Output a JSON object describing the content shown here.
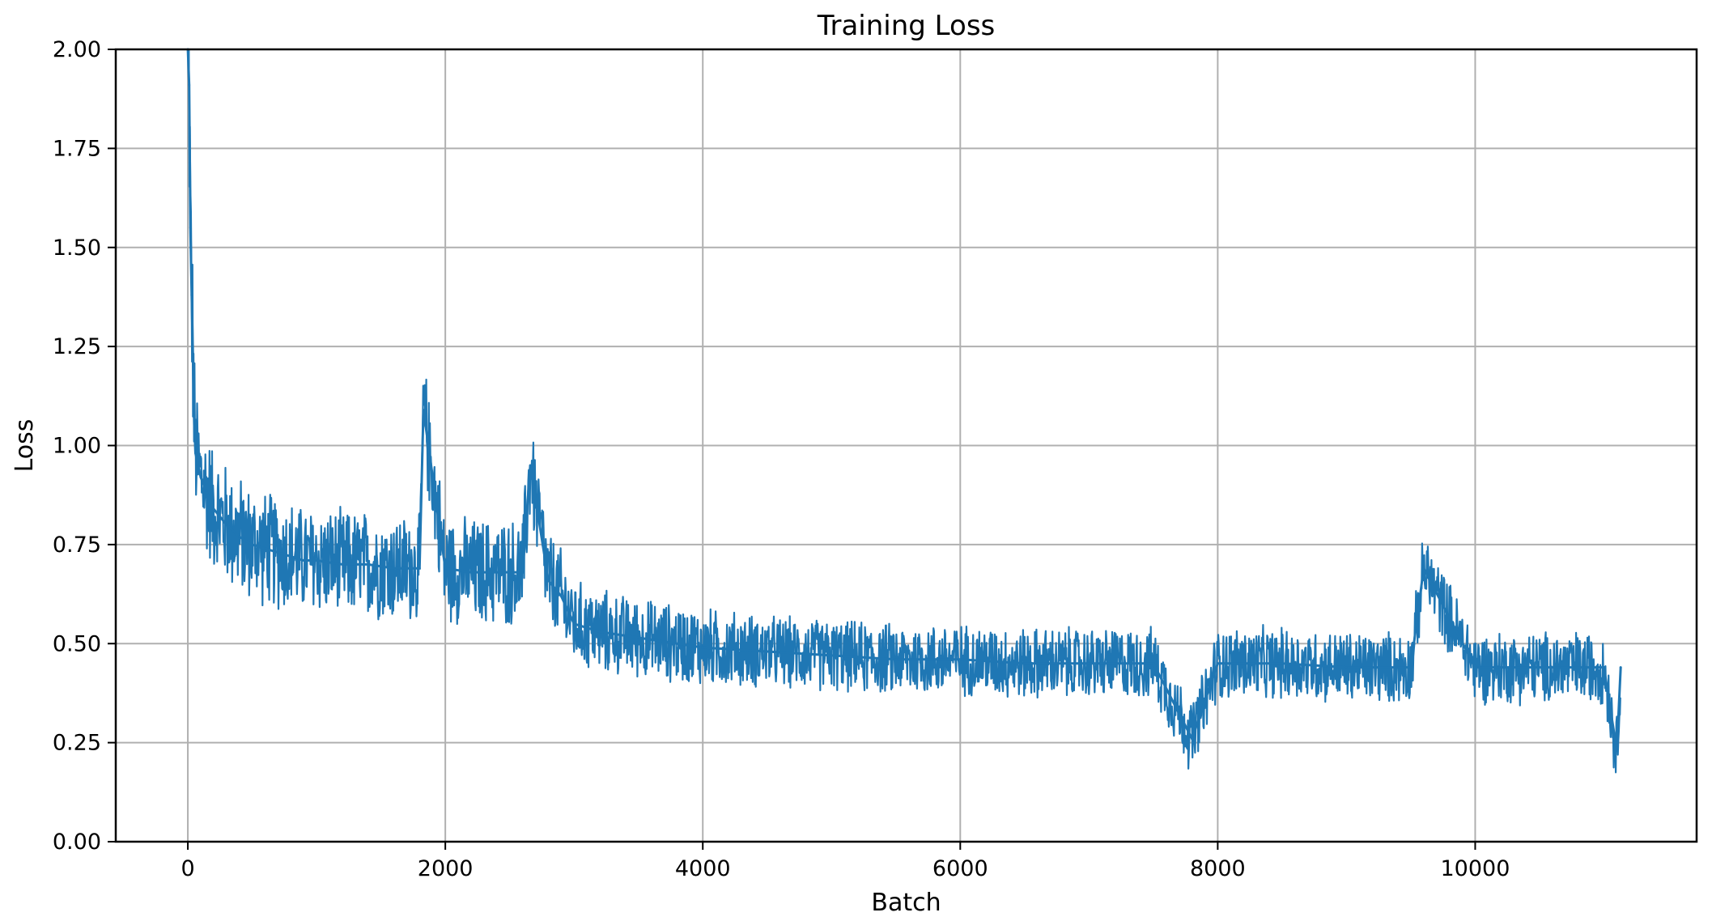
{
  "chart_data": {
    "type": "line",
    "title": "Training Loss",
    "xlabel": "Batch",
    "ylabel": "Loss",
    "xlim": [
      -560,
      11720
    ],
    "ylim": [
      0.0,
      2.0
    ],
    "grid": true,
    "legend": "none",
    "x_ticks": [
      0,
      2000,
      4000,
      6000,
      8000,
      10000
    ],
    "x_tick_labels": [
      "0",
      "2000",
      "4000",
      "6000",
      "8000",
      "10000"
    ],
    "y_ticks": [
      0.0,
      0.25,
      0.5,
      0.75,
      1.0,
      1.25,
      1.5,
      1.75,
      2.0
    ],
    "y_tick_labels": [
      "0.00",
      "0.25",
      "0.50",
      "0.75",
      "1.00",
      "1.25",
      "1.50",
      "1.75",
      "2.00"
    ],
    "series": [
      {
        "color": "#1f77b4",
        "x": [
          0,
          10,
          20,
          30,
          40,
          50,
          60,
          80,
          100,
          150,
          200,
          300,
          400,
          500,
          600,
          700,
          800,
          900,
          1000,
          1200,
          1400,
          1600,
          1800,
          1830,
          2000,
          2200,
          2400,
          2600,
          2660,
          2800,
          2900,
          3000,
          3200,
          3400,
          3600,
          3800,
          4000,
          4500,
          5000,
          5500,
          6000,
          6500,
          7000,
          7500,
          7800,
          8000,
          8500,
          9000,
          9500,
          9600,
          10000,
          10500,
          11000,
          11100,
          11130
        ],
        "y": [
          2.0,
          1.91,
          1.55,
          1.38,
          1.22,
          1.05,
          0.98,
          0.95,
          0.92,
          0.88,
          0.84,
          0.8,
          0.77,
          0.75,
          0.74,
          0.73,
          0.72,
          0.71,
          0.71,
          0.7,
          0.7,
          0.69,
          0.69,
          1.09,
          0.69,
          0.68,
          0.68,
          0.68,
          0.95,
          0.66,
          0.62,
          0.55,
          0.53,
          0.52,
          0.51,
          0.5,
          0.49,
          0.48,
          0.47,
          0.46,
          0.46,
          0.45,
          0.45,
          0.45,
          0.26,
          0.45,
          0.45,
          0.44,
          0.44,
          0.69,
          0.44,
          0.44,
          0.44,
          0.23,
          0.44
        ],
        "noise_band": [
          0.3,
          0.3,
          0.28,
          0.26,
          0.24,
          0.22,
          0.2,
          0.19,
          0.18,
          0.18,
          0.17,
          0.17,
          0.17,
          0.16,
          0.16,
          0.16,
          0.16,
          0.15,
          0.15,
          0.15,
          0.15,
          0.15,
          0.15,
          0.15,
          0.15,
          0.15,
          0.15,
          0.15,
          0.15,
          0.14,
          0.13,
          0.12,
          0.12,
          0.11,
          0.11,
          0.11,
          0.11,
          0.1,
          0.1,
          0.1,
          0.1,
          0.1,
          0.1,
          0.1,
          0.1,
          0.1,
          0.1,
          0.1,
          0.1,
          0.1,
          0.1,
          0.1,
          0.1,
          0.1,
          0.1
        ]
      }
    ]
  }
}
